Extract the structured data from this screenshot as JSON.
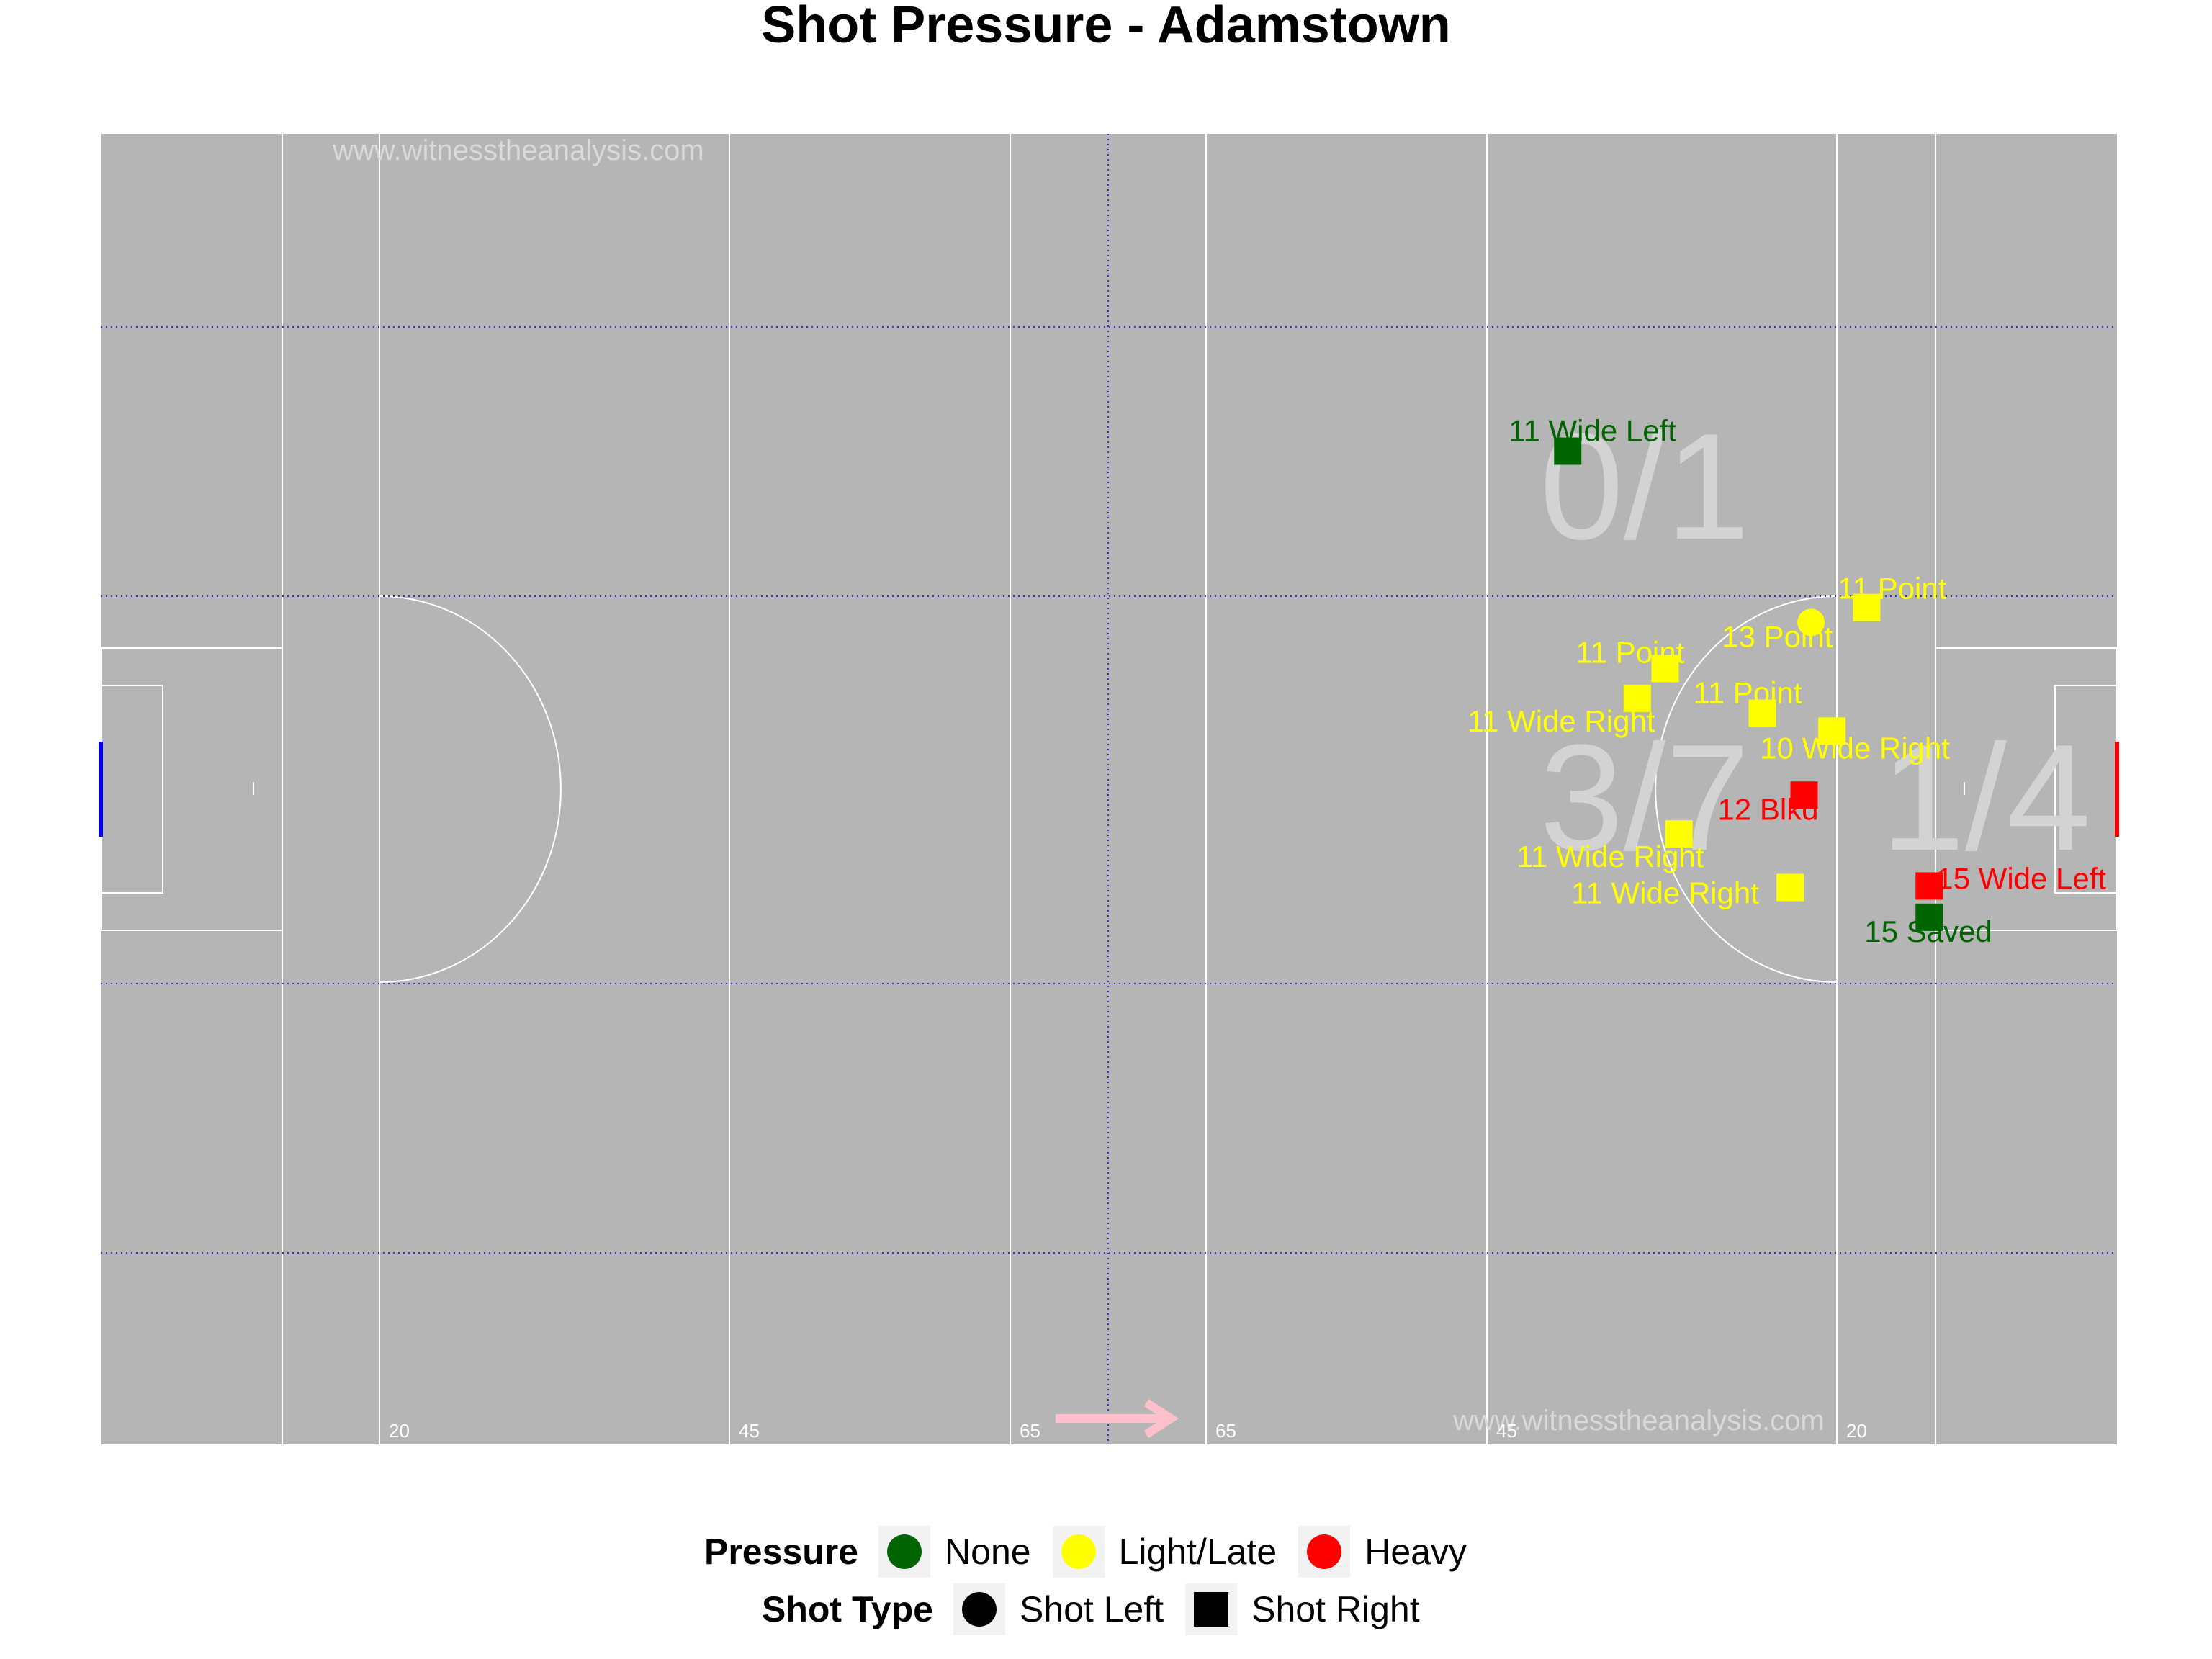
{
  "title": "Shot Pressure - Adamstown",
  "watermark": "www.witnesstheanalysis.com",
  "colors": {
    "pitch": "#b5b5b5",
    "lines": "#ffffff",
    "grid": "#3333cc",
    "none": "#006400",
    "light_late": "#ffff00",
    "heavy": "#ff0000",
    "left_goal": "#0000ff",
    "right_goal": "#ff0000",
    "direction_arrow": "#ffc0cb"
  },
  "yard_labels": [
    "20",
    "45",
    "65",
    "65",
    "45",
    "20"
  ],
  "zone_stats": [
    {
      "zone": "top",
      "text": "0/1"
    },
    {
      "zone": "central",
      "text": "3/7"
    },
    {
      "zone": "close",
      "text": "1/4"
    }
  ],
  "legend": {
    "pressure_title": "Pressure",
    "pressure_items": [
      {
        "label": "None",
        "color": "#006400"
      },
      {
        "label": "Light/Late",
        "color": "#ffff00"
      },
      {
        "label": "Heavy",
        "color": "#ff0000"
      }
    ],
    "shot_type_title": "Shot Type",
    "shot_type_items": [
      {
        "label": "Shot Left",
        "shape": "circle"
      },
      {
        "label": "Shot Right",
        "shape": "square"
      }
    ]
  },
  "chart_data": {
    "type": "scatter",
    "title": "Shot Pressure - Adamstown",
    "xlabel": "",
    "ylabel": "",
    "xlim": [
      0,
      145
    ],
    "ylim": [
      0,
      88
    ],
    "attack_direction": "right",
    "points": [
      {
        "x": 105.5,
        "y": 66.7,
        "label": "11 Wide Left",
        "pressure": "None",
        "shot": "Shot Right"
      },
      {
        "x": 127,
        "y": 56.2,
        "label": "11 Point",
        "pressure": "Light/Late",
        "shot": "Shot Right"
      },
      {
        "x": 123,
        "y": 55.2,
        "label": "13 Point",
        "pressure": "Light/Late",
        "shot": "Shot Left"
      },
      {
        "x": 112.5,
        "y": 52.1,
        "label": "11 Point",
        "pressure": "Light/Late",
        "shot": "Shot Right"
      },
      {
        "x": 110.5,
        "y": 50.1,
        "label": "11 Wide Right",
        "pressure": "Light/Late",
        "shot": "Shot Right"
      },
      {
        "x": 119.5,
        "y": 49.1,
        "label": "11 Point",
        "pressure": "Light/Late",
        "shot": "Shot Right"
      },
      {
        "x": 124.5,
        "y": 47.9,
        "label": "10 Wide Right",
        "pressure": "Light/Late",
        "shot": "Shot Right"
      },
      {
        "x": 122.5,
        "y": 43.6,
        "label": "12 Blkd",
        "pressure": "Heavy",
        "shot": "Shot Right"
      },
      {
        "x": 113.5,
        "y": 41.0,
        "label": "11 Wide Right",
        "pressure": "Light/Late",
        "shot": "Shot Right"
      },
      {
        "x": 121.5,
        "y": 37.4,
        "label": "11 Wide Right",
        "pressure": "Light/Late",
        "shot": "Shot Right"
      },
      {
        "x": 131.5,
        "y": 37.5,
        "label": "15 Wide Left",
        "pressure": "Heavy",
        "shot": "Shot Right"
      },
      {
        "x": 131.5,
        "y": 35.4,
        "label": "15 Saved",
        "pressure": "None",
        "shot": "Shot Right"
      }
    ]
  }
}
